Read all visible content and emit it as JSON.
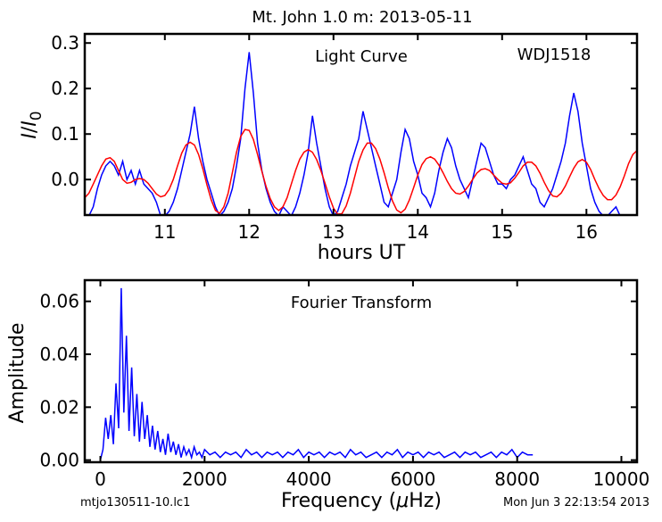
{
  "figure": {
    "title": "Mt. John 1.0 m:  2013-05-11",
    "footer_left": "mtjo130511-10.lc1",
    "footer_right": "Mon Jun  3 22:13:54 2013"
  },
  "chart_data": [
    {
      "type": "line",
      "annotations": [
        "Light Curve",
        "WDJ1518"
      ],
      "xlabel": "hours UT",
      "ylabel": "I/I0",
      "ylabel_parts": {
        "main": "I",
        "slash": "/",
        "den": "I",
        "sub": "0"
      },
      "xlim": [
        10.05,
        16.6
      ],
      "ylim": [
        -0.078,
        0.32
      ],
      "xticks": [
        11,
        12,
        13,
        14,
        15,
        16
      ],
      "xtick_labels": [
        "11",
        "12",
        "13",
        "14",
        "15",
        "16"
      ],
      "yticks": [
        0.0,
        0.1,
        0.2,
        0.3
      ],
      "ytick_labels": [
        "0.0",
        "0.1",
        "0.2",
        "0.3"
      ],
      "grid": false,
      "series": [
        {
          "color": "#0000ff",
          "x": [
            10.05,
            10.1,
            10.15,
            10.2,
            10.25,
            10.3,
            10.35,
            10.4,
            10.45,
            10.5,
            10.55,
            10.6,
            10.65,
            10.7,
            10.75,
            10.8,
            10.85,
            10.9,
            10.95,
            11.0,
            11.05,
            11.1,
            11.15,
            11.2,
            11.25,
            11.3,
            11.35,
            11.4,
            11.45,
            11.5,
            11.55,
            11.6,
            11.65,
            11.7,
            11.75,
            11.8,
            11.85,
            11.9,
            11.95,
            12.0,
            12.05,
            12.1,
            12.15,
            12.2,
            12.25,
            12.3,
            12.35,
            12.4,
            12.45,
            12.5,
            12.55,
            12.6,
            12.65,
            12.7,
            12.75,
            12.8,
            12.85,
            12.9,
            12.95,
            13.0,
            13.05,
            13.1,
            13.15,
            13.2,
            13.25,
            13.3,
            13.35,
            13.4,
            13.45,
            13.5,
            13.55,
            13.6,
            13.65,
            13.7,
            13.75,
            13.8,
            13.85,
            13.9,
            13.95,
            14.0,
            14.05,
            14.1,
            14.15,
            14.2,
            14.25,
            14.3,
            14.35,
            14.4,
            14.45,
            14.5,
            14.55,
            14.6,
            14.65,
            14.7,
            14.75,
            14.8,
            14.85,
            14.9,
            14.95,
            15.0,
            15.05,
            15.1,
            15.15,
            15.2,
            15.25,
            15.3,
            15.35,
            15.4,
            15.45,
            15.5,
            15.55,
            15.6,
            15.65,
            15.7,
            15.75,
            15.8,
            15.85,
            15.9,
            15.95,
            16.0,
            16.05,
            16.1,
            16.15,
            16.2,
            16.25,
            16.3,
            16.35,
            16.4,
            16.45,
            16.5,
            16.55,
            16.6
          ],
          "y": [
            -0.08,
            -0.08,
            -0.06,
            -0.02,
            0.01,
            0.03,
            0.04,
            0.03,
            0.01,
            0.04,
            0.0,
            0.02,
            -0.01,
            0.02,
            -0.01,
            -0.02,
            -0.03,
            -0.05,
            -0.08,
            -0.08,
            -0.07,
            -0.05,
            -0.02,
            0.02,
            0.06,
            0.1,
            0.16,
            0.09,
            0.04,
            0.0,
            -0.03,
            -0.06,
            -0.08,
            -0.07,
            -0.05,
            -0.02,
            0.03,
            0.09,
            0.2,
            0.28,
            0.19,
            0.08,
            0.02,
            -0.02,
            -0.05,
            -0.07,
            -0.08,
            -0.06,
            -0.07,
            -0.08,
            -0.06,
            -0.03,
            0.01,
            0.06,
            0.14,
            0.08,
            0.03,
            -0.02,
            -0.06,
            -0.08,
            -0.07,
            -0.04,
            -0.01,
            0.03,
            0.06,
            0.09,
            0.15,
            0.11,
            0.07,
            0.03,
            -0.01,
            -0.05,
            -0.06,
            -0.03,
            0.0,
            0.06,
            0.11,
            0.09,
            0.04,
            0.01,
            -0.03,
            -0.04,
            -0.06,
            -0.03,
            0.02,
            0.06,
            0.09,
            0.07,
            0.03,
            0.0,
            -0.02,
            -0.04,
            0.0,
            0.04,
            0.08,
            0.07,
            0.04,
            0.01,
            -0.01,
            -0.01,
            -0.02,
            0.0,
            0.01,
            0.03,
            0.05,
            0.02,
            -0.01,
            -0.02,
            -0.05,
            -0.06,
            -0.04,
            -0.02,
            0.01,
            0.04,
            0.08,
            0.14,
            0.19,
            0.15,
            0.08,
            0.03,
            -0.02,
            -0.05,
            -0.07,
            -0.08,
            -0.08,
            -0.07,
            -0.06,
            -0.08,
            -0.08,
            -0.08,
            -0.08,
            -0.08
          ]
        },
        {
          "color": "#ff0000",
          "x": [
            10.05,
            10.1,
            10.15,
            10.2,
            10.25,
            10.3,
            10.35,
            10.4,
            10.45,
            10.5,
            10.55,
            10.6,
            10.65,
            10.7,
            10.75,
            10.8,
            10.85,
            10.9,
            10.95,
            11.0,
            11.05,
            11.1,
            11.15,
            11.2,
            11.25,
            11.3,
            11.35,
            11.4,
            11.45,
            11.5,
            11.55,
            11.6,
            11.65,
            11.7,
            11.75,
            11.8,
            11.85,
            11.9,
            11.95,
            12.0,
            12.05,
            12.1,
            12.15,
            12.2,
            12.25,
            12.3,
            12.35,
            12.4,
            12.45,
            12.5,
            12.55,
            12.6,
            12.65,
            12.7,
            12.75,
            12.8,
            12.85,
            12.9,
            12.95,
            13.0,
            13.05,
            13.1,
            13.15,
            13.2,
            13.25,
            13.3,
            13.35,
            13.4,
            13.45,
            13.5,
            13.55,
            13.6,
            13.65,
            13.7,
            13.75,
            13.8,
            13.85,
            13.9,
            13.95,
            14.0,
            14.05,
            14.1,
            14.15,
            14.2,
            14.25,
            14.3,
            14.35,
            14.4,
            14.45,
            14.5,
            14.55,
            14.6,
            14.65,
            14.7,
            14.75,
            14.8,
            14.85,
            14.9,
            14.95,
            15.0,
            15.05,
            15.1,
            15.15,
            15.2,
            15.25,
            15.3,
            15.35,
            15.4,
            15.45,
            15.5,
            15.55,
            15.6,
            15.65,
            15.7,
            15.75,
            15.8,
            15.85,
            15.9,
            15.95,
            16.0,
            16.05,
            16.1,
            16.15,
            16.2,
            16.25,
            16.3,
            16.35,
            16.4,
            16.45,
            16.5,
            16.55,
            16.6
          ],
          "y": [
            -0.04,
            -0.03,
            -0.01,
            0.01,
            0.03,
            0.045,
            0.048,
            0.04,
            0.02,
            0.0,
            -0.008,
            -0.006,
            0.0,
            0.002,
            0.0,
            -0.008,
            -0.02,
            -0.032,
            -0.038,
            -0.035,
            -0.022,
            0.0,
            0.03,
            0.058,
            0.076,
            0.082,
            0.076,
            0.055,
            0.024,
            -0.012,
            -0.045,
            -0.068,
            -0.074,
            -0.06,
            -0.03,
            0.015,
            0.06,
            0.095,
            0.11,
            0.108,
            0.088,
            0.055,
            0.018,
            -0.015,
            -0.042,
            -0.06,
            -0.068,
            -0.06,
            -0.04,
            -0.01,
            0.02,
            0.045,
            0.06,
            0.066,
            0.06,
            0.044,
            0.02,
            -0.008,
            -0.038,
            -0.063,
            -0.076,
            -0.075,
            -0.058,
            -0.03,
            0.005,
            0.04,
            0.065,
            0.08,
            0.08,
            0.068,
            0.045,
            0.015,
            -0.018,
            -0.047,
            -0.067,
            -0.073,
            -0.065,
            -0.045,
            -0.018,
            0.01,
            0.033,
            0.046,
            0.05,
            0.045,
            0.032,
            0.015,
            -0.004,
            -0.02,
            -0.03,
            -0.032,
            -0.026,
            -0.014,
            0.0,
            0.014,
            0.022,
            0.024,
            0.02,
            0.01,
            0.0,
            -0.008,
            -0.01,
            -0.007,
            0.003,
            0.016,
            0.03,
            0.038,
            0.038,
            0.03,
            0.014,
            -0.006,
            -0.024,
            -0.036,
            -0.038,
            -0.03,
            -0.014,
            0.006,
            0.025,
            0.039,
            0.044,
            0.038,
            0.022,
            0.0,
            -0.02,
            -0.035,
            -0.044,
            -0.044,
            -0.034,
            -0.016,
            0.008,
            0.035,
            0.055,
            0.064
          ]
        }
      ]
    },
    {
      "type": "line",
      "annotations": [
        "Fourier Transform"
      ],
      "xlabel": "Frequency (μHz)",
      "xlabel_parts": {
        "before": "Frequency (",
        "mu": "μ",
        "after": "Hz)"
      },
      "ylabel": "Amplitude",
      "xlim": [
        -300,
        10300
      ],
      "ylim": [
        -0.0008,
        0.068
      ],
      "xticks": [
        0,
        2000,
        4000,
        6000,
        8000,
        10000
      ],
      "xtick_labels": [
        "0",
        "2000",
        "4000",
        "6000",
        "8000",
        "10000"
      ],
      "yticks": [
        0.0,
        0.02,
        0.04,
        0.06
      ],
      "ytick_labels": [
        "0.00",
        "0.02",
        "0.04",
        "0.06"
      ],
      "grid": false,
      "series": [
        {
          "color": "#0000ff",
          "x": [
            0,
            50,
            100,
            150,
            200,
            250,
            300,
            350,
            400,
            450,
            500,
            550,
            600,
            650,
            700,
            750,
            800,
            850,
            900,
            950,
            1000,
            1050,
            1100,
            1150,
            1200,
            1250,
            1300,
            1350,
            1400,
            1450,
            1500,
            1550,
            1600,
            1650,
            1700,
            1750,
            1800,
            1850,
            1900,
            1950,
            2000,
            2100,
            2200,
            2300,
            2400,
            2500,
            2600,
            2700,
            2800,
            2900,
            3000,
            3100,
            3200,
            3300,
            3400,
            3500,
            3600,
            3700,
            3800,
            3900,
            4000,
            4100,
            4200,
            4300,
            4400,
            4500,
            4600,
            4700,
            4800,
            4900,
            5000,
            5100,
            5200,
            5300,
            5400,
            5500,
            5600,
            5700,
            5800,
            5900,
            6000,
            6100,
            6200,
            6300,
            6400,
            6500,
            6600,
            6700,
            6800,
            6900,
            7000,
            7100,
            7200,
            7300,
            7400,
            7500,
            7600,
            7700,
            7800,
            7900,
            8000,
            8100,
            8200,
            8300
          ],
          "y": [
            0.0,
            0.004,
            0.016,
            0.008,
            0.017,
            0.006,
            0.029,
            0.012,
            0.065,
            0.018,
            0.047,
            0.011,
            0.035,
            0.009,
            0.025,
            0.007,
            0.022,
            0.008,
            0.017,
            0.005,
            0.013,
            0.004,
            0.011,
            0.003,
            0.008,
            0.002,
            0.01,
            0.003,
            0.007,
            0.002,
            0.006,
            0.001,
            0.005,
            0.002,
            0.004,
            0.001,
            0.005,
            0.002,
            0.003,
            0.001,
            0.004,
            0.002,
            0.003,
            0.001,
            0.003,
            0.002,
            0.003,
            0.001,
            0.004,
            0.002,
            0.003,
            0.001,
            0.003,
            0.002,
            0.003,
            0.001,
            0.003,
            0.002,
            0.004,
            0.001,
            0.003,
            0.002,
            0.003,
            0.001,
            0.003,
            0.002,
            0.003,
            0.001,
            0.004,
            0.002,
            0.003,
            0.001,
            0.002,
            0.003,
            0.001,
            0.003,
            0.002,
            0.004,
            0.001,
            0.003,
            0.002,
            0.003,
            0.001,
            0.003,
            0.002,
            0.003,
            0.001,
            0.002,
            0.003,
            0.001,
            0.003,
            0.002,
            0.003,
            0.001,
            0.002,
            0.003,
            0.001,
            0.003,
            0.002,
            0.004,
            0.001,
            0.003,
            0.002,
            0.002
          ]
        }
      ]
    }
  ]
}
